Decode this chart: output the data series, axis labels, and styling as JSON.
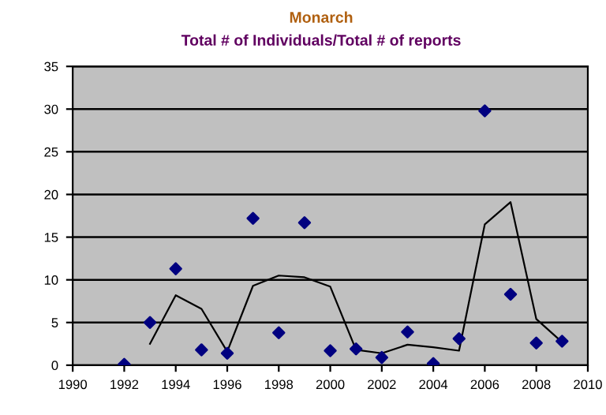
{
  "chart_data": {
    "type": "scatter",
    "title": "Monarch",
    "subtitle": "Total # of Individuals/Total # of reports",
    "x": [
      1992,
      1993,
      1994,
      1995,
      1996,
      1997,
      1998,
      1999,
      2000,
      2001,
      2002,
      2003,
      2004,
      2005,
      2006,
      2007,
      2008,
      2009
    ],
    "series": [
      {
        "color": "#000080",
        "marker": "diamond",
        "values": [
          0.1,
          5.0,
          11.3,
          1.8,
          1.4,
          17.2,
          3.8,
          16.7,
          1.7,
          1.9,
          0.9,
          3.9,
          0.2,
          3.1,
          29.8,
          8.3,
          2.6,
          2.8
        ]
      },
      {
        "type": "line",
        "color": "#000000",
        "marker": "none",
        "line_style": "solid",
        "x": [
          1993,
          1994,
          1995,
          1996,
          1997,
          1998,
          1999,
          2000,
          2001,
          2002,
          2003,
          2004,
          2005,
          2006,
          2007,
          2008,
          2009
        ],
        "values": [
          2.5,
          8.2,
          6.6,
          1.6,
          9.3,
          10.5,
          10.3,
          9.2,
          1.8,
          1.4,
          2.4,
          2.1,
          1.7,
          16.5,
          19.1,
          5.4,
          2.7
        ]
      }
    ],
    "xlim": [
      1990,
      2010
    ],
    "xticks": [
      1990,
      1992,
      1994,
      1996,
      1998,
      2000,
      2002,
      2004,
      2006,
      2008,
      2010
    ],
    "ylim": [
      0,
      35
    ],
    "yticks": [
      0,
      5,
      10,
      15,
      20,
      25,
      30,
      35
    ],
    "grid": "y",
    "legend": false
  }
}
